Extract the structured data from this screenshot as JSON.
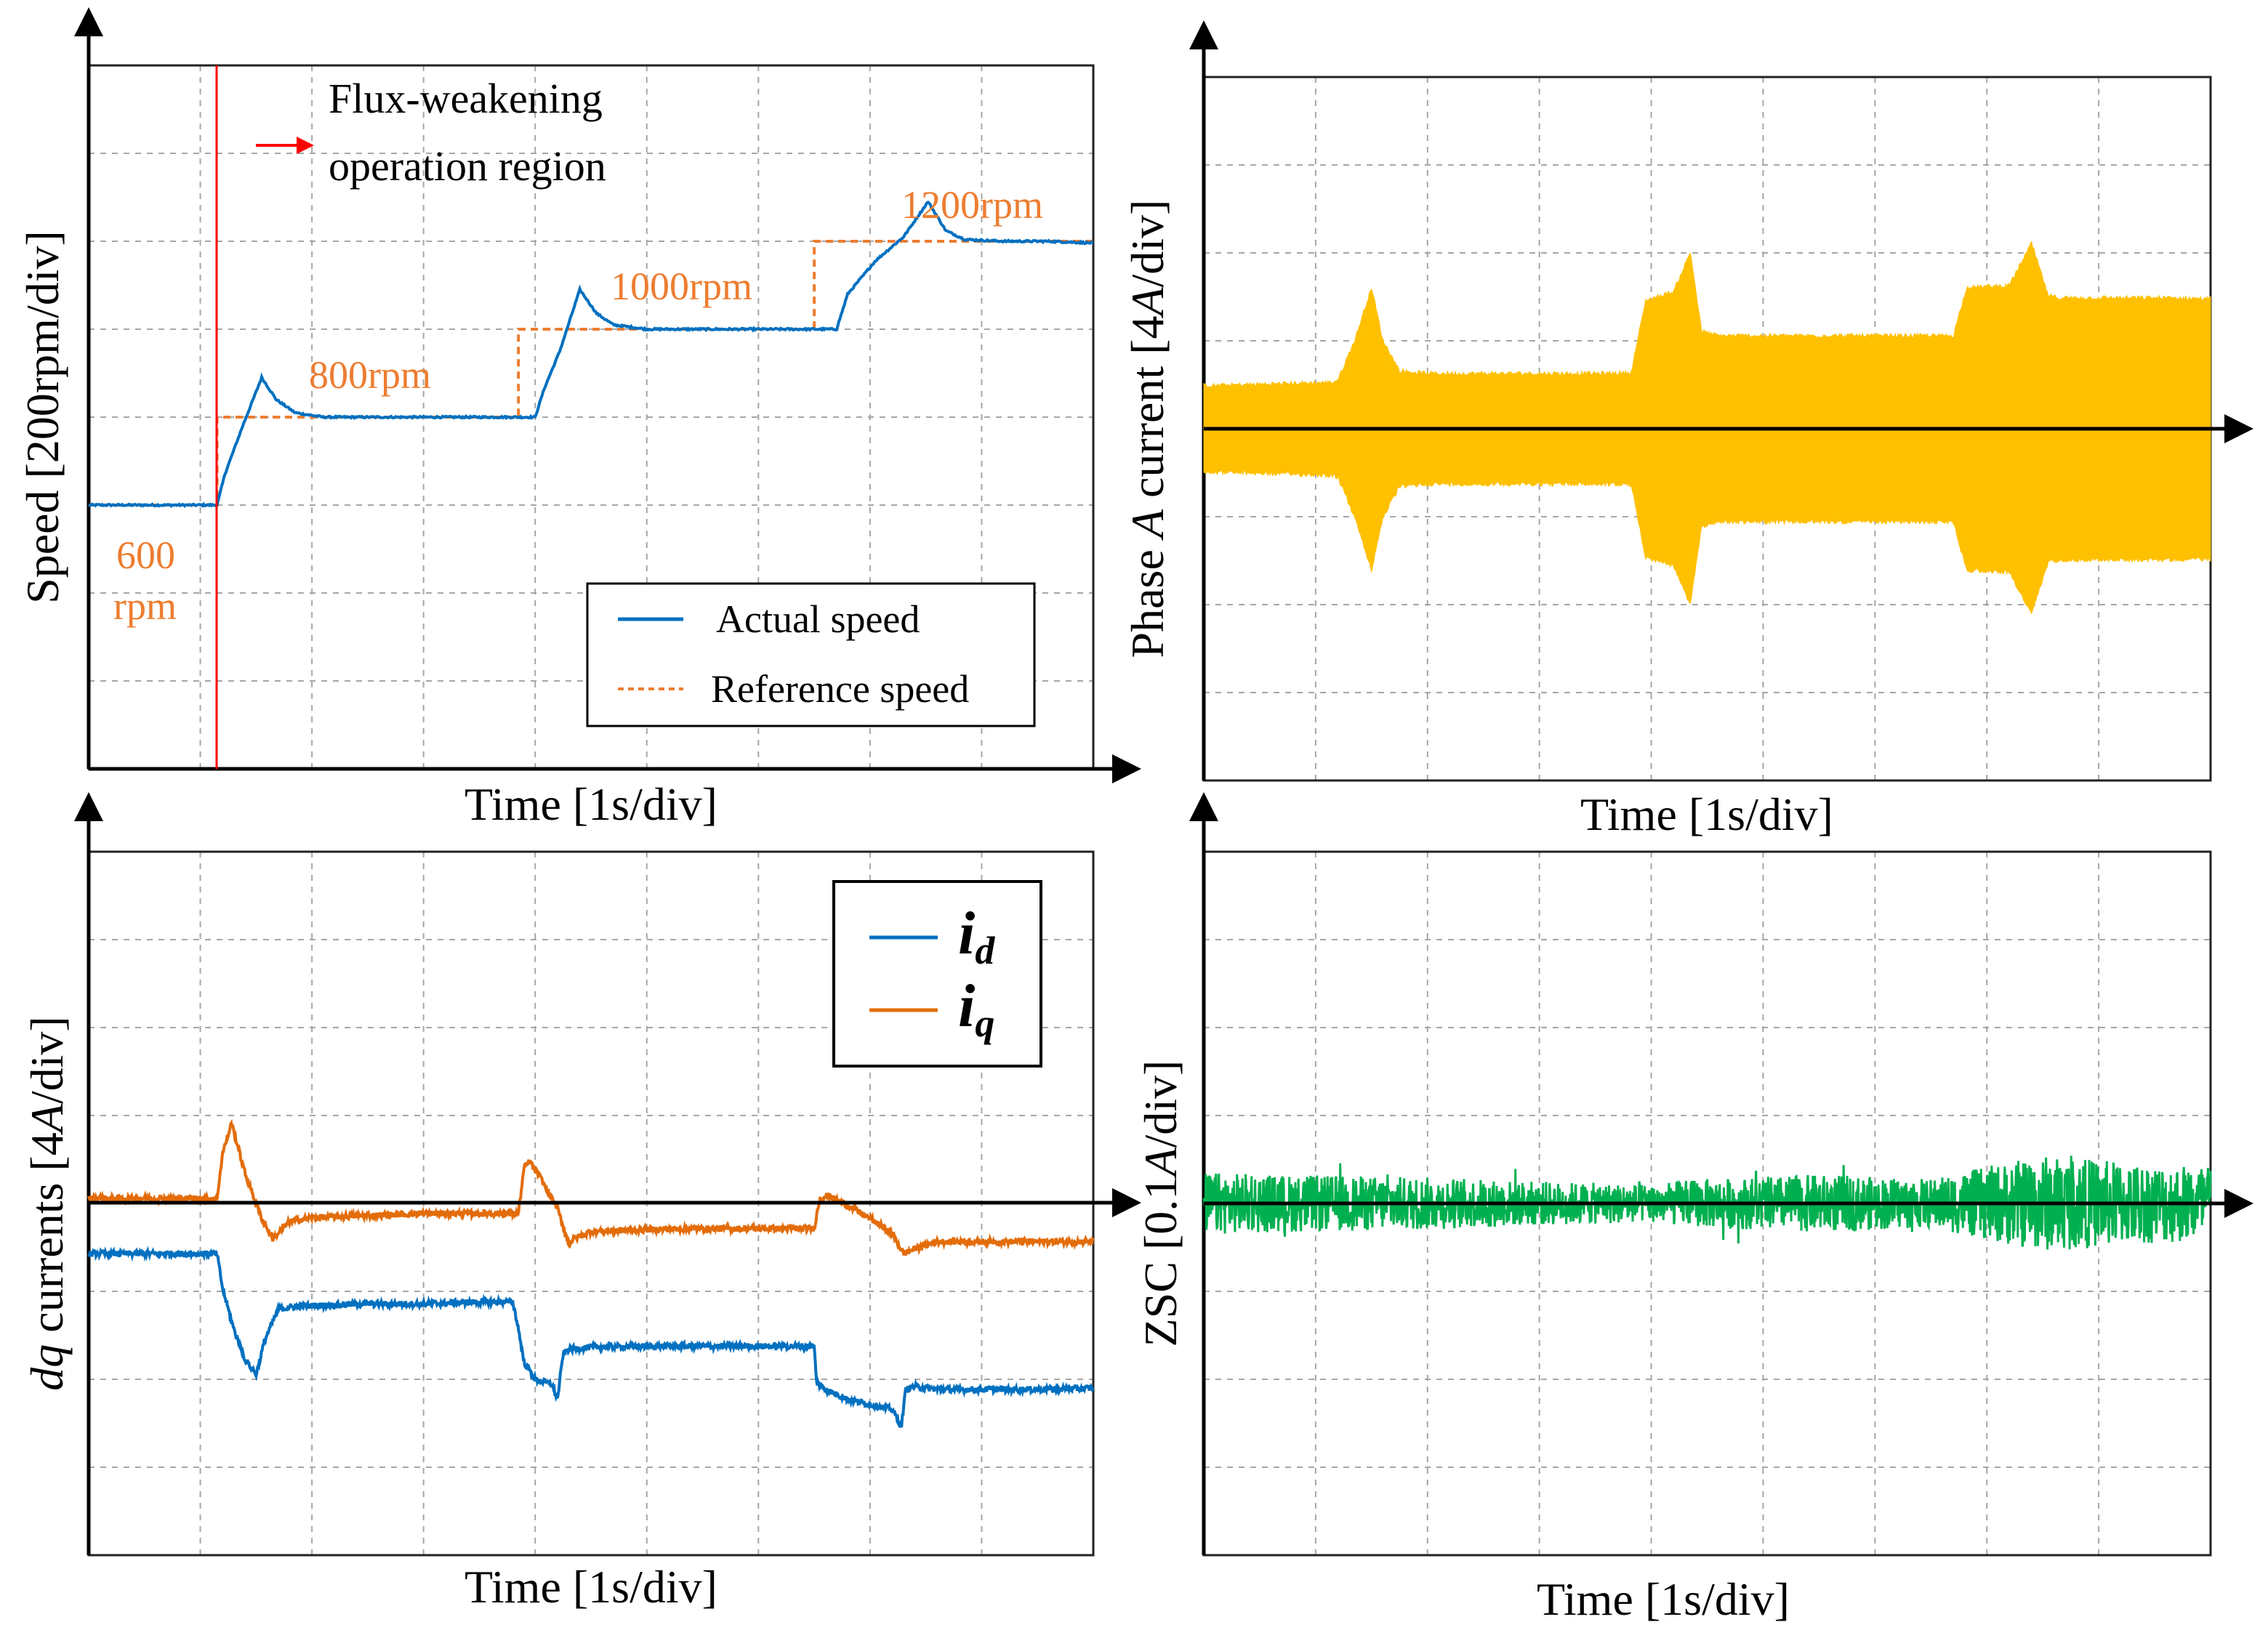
{
  "colors": {
    "actual": "#0070c0",
    "reference": "#ed7d31",
    "phase_a": "#ffc000",
    "id": "#0070c0",
    "iq": "#e36c0a",
    "zsc": "#00b050",
    "marker": "#ff0000"
  },
  "chart_data": [
    {
      "type": "line",
      "name": "speed",
      "title": "",
      "xlabel": "Time [1s/div]",
      "ylabel": "Speed [200rpm/div]",
      "xlim": [
        0,
        9
      ],
      "ylim": [
        -3,
        5
      ],
      "annotations": {
        "region_line1": "Flux-weakening",
        "region_line2": "operation region",
        "speed_600_line1": "600",
        "speed_600_line2": "rpm",
        "speed_800": "800rpm",
        "speed_1000": "1000rpm",
        "speed_1200": "1200rpm"
      },
      "legend": {
        "position": "bottom-right",
        "entries": [
          "Actual speed",
          "Reference speed"
        ]
      },
      "series": [
        {
          "name": "Actual speed",
          "style": "solid",
          "x": [
            0,
            1.15,
            1.22,
            1.38,
            1.55,
            1.68,
            1.85,
            2.1,
            2.5,
            3,
            3.5,
            4,
            4.08,
            4.22,
            4.4,
            4.55,
            4.7,
            5,
            5.5,
            6,
            6.5,
            6.7,
            6.8,
            7.05,
            7.3,
            7.52,
            7.68,
            7.85,
            8.2,
            8.6,
            9
          ],
          "y": [
            0,
            0,
            0.35,
            0.9,
            1.45,
            1.2,
            1.05,
            1.0,
            1.0,
            1.0,
            1.0,
            1.0,
            1.32,
            1.75,
            2.45,
            2.18,
            2.05,
            2.0,
            2.0,
            2.0,
            2.0,
            2.0,
            2.4,
            2.78,
            3.05,
            3.45,
            3.12,
            3.02,
            3.0,
            3.0,
            2.98
          ]
        },
        {
          "name": "Reference speed",
          "style": "dashed",
          "x": [
            0,
            1.15,
            1.15,
            3.85,
            3.85,
            6.5,
            6.5,
            9
          ],
          "y": [
            0,
            0,
            1,
            1,
            2,
            2,
            3,
            3
          ]
        }
      ],
      "marker_x": 1.15
    },
    {
      "type": "line",
      "name": "phase-a",
      "title": "",
      "xlabel": "Time [1s/div]",
      "ylabel_prefix": "Phase ",
      "ylabel_italic": "A",
      "ylabel_suffix": " current [4",
      "ylabel_unit_italic": "A",
      "ylabel_end": "/div]",
      "xlim": [
        0,
        9
      ],
      "ylim": [
        -4,
        4
      ],
      "series": [
        {
          "name": "Phase A current envelope",
          "x": [
            0,
            1.15,
            1.2,
            1.35,
            1.5,
            1.6,
            1.75,
            2,
            3,
            3.6,
            3.82,
            3.95,
            4.2,
            4.35,
            4.45,
            4.6,
            5,
            6,
            6.5,
            6.7,
            6.82,
            7.2,
            7.4,
            7.55,
            7.65,
            8,
            8.6,
            9
          ],
          "y": [
            0.48,
            0.52,
            0.55,
            1.0,
            1.6,
            1.0,
            0.65,
            0.62,
            0.62,
            0.62,
            0.63,
            1.45,
            1.55,
            2.0,
            1.1,
            1.05,
            1.05,
            1.05,
            1.05,
            1.05,
            1.6,
            1.62,
            2.1,
            1.5,
            1.48,
            1.48,
            1.48,
            1.47
          ]
        }
      ]
    },
    {
      "type": "line",
      "name": "dq-currents",
      "title": "",
      "xlabel": "Time [1s/div]",
      "ylabel_italic": "dq",
      "ylabel_mid": " currents [4",
      "ylabel_unit_italic": "A",
      "ylabel_end": "/div]",
      "xlim": [
        0,
        9
      ],
      "ylim": [
        -3,
        4
      ],
      "legend": {
        "position": "top-right",
        "entries": [
          {
            "main": "i",
            "sub": "d"
          },
          {
            "main": "i",
            "sub": "q"
          }
        ]
      },
      "series": [
        {
          "name": "id",
          "x": [
            0,
            1.15,
            1.2,
            1.3,
            1.4,
            1.5,
            1.58,
            1.7,
            1.9,
            2.5,
            3,
            3.5,
            3.8,
            3.85,
            3.9,
            4.0,
            4.15,
            4.2,
            4.25,
            4.3,
            4.5,
            5,
            5.5,
            6,
            6.5,
            6.52,
            6.6,
            6.8,
            7.0,
            7.2,
            7.28,
            7.32,
            7.4,
            7.6,
            8,
            8.5,
            9
          ],
          "y": [
            0,
            0,
            -0.35,
            -0.75,
            -1.05,
            -1.2,
            -0.85,
            -0.55,
            -0.52,
            -0.5,
            -0.5,
            -0.48,
            -0.48,
            -0.75,
            -1.08,
            -1.25,
            -1.3,
            -1.45,
            -1.0,
            -0.95,
            -0.93,
            -0.92,
            -0.92,
            -0.92,
            -0.92,
            -1.28,
            -1.35,
            -1.45,
            -1.5,
            -1.55,
            -1.72,
            -1.35,
            -1.32,
            -1.35,
            -1.35,
            -1.35,
            -1.34
          ]
        },
        {
          "name": "iq",
          "x": [
            0,
            1.15,
            1.2,
            1.28,
            1.4,
            1.55,
            1.65,
            1.8,
            2,
            2.5,
            3,
            3.5,
            3.85,
            3.9,
            3.95,
            4.05,
            4.2,
            4.3,
            4.35,
            4.5,
            5,
            5.5,
            6,
            6.5,
            6.55,
            6.62,
            6.8,
            7.0,
            7.2,
            7.3,
            7.4,
            7.6,
            8,
            8.5,
            9
          ],
          "y": [
            0.55,
            0.55,
            1.0,
            1.3,
            0.8,
            0.35,
            0.15,
            0.32,
            0.36,
            0.38,
            0.4,
            0.4,
            0.4,
            0.85,
            0.92,
            0.75,
            0.45,
            0.1,
            0.15,
            0.22,
            0.24,
            0.25,
            0.25,
            0.25,
            0.55,
            0.58,
            0.48,
            0.35,
            0.2,
            0.0,
            0.05,
            0.12,
            0.12,
            0.12,
            0.12
          ]
        }
      ]
    },
    {
      "type": "line",
      "name": "zsc",
      "title": "",
      "xlabel": "Time [1s/div]",
      "ylabel_prefix": "ZSC [0.1",
      "ylabel_unit_italic": "A",
      "ylabel_end": "/div]",
      "xlim": [
        0,
        9
      ],
      "ylim": [
        -4,
        4
      ],
      "series": [
        {
          "name": "ZSC envelope",
          "x": [
            0,
            1,
            2,
            3,
            4,
            4.5,
            5,
            5.5,
            6,
            6.5,
            7,
            7.5,
            8,
            8.5,
            9
          ],
          "y": [
            0.35,
            0.32,
            0.3,
            0.25,
            0.22,
            0.28,
            0.3,
            0.33,
            0.3,
            0.28,
            0.42,
            0.55,
            0.5,
            0.45,
            0.45
          ]
        }
      ]
    }
  ]
}
